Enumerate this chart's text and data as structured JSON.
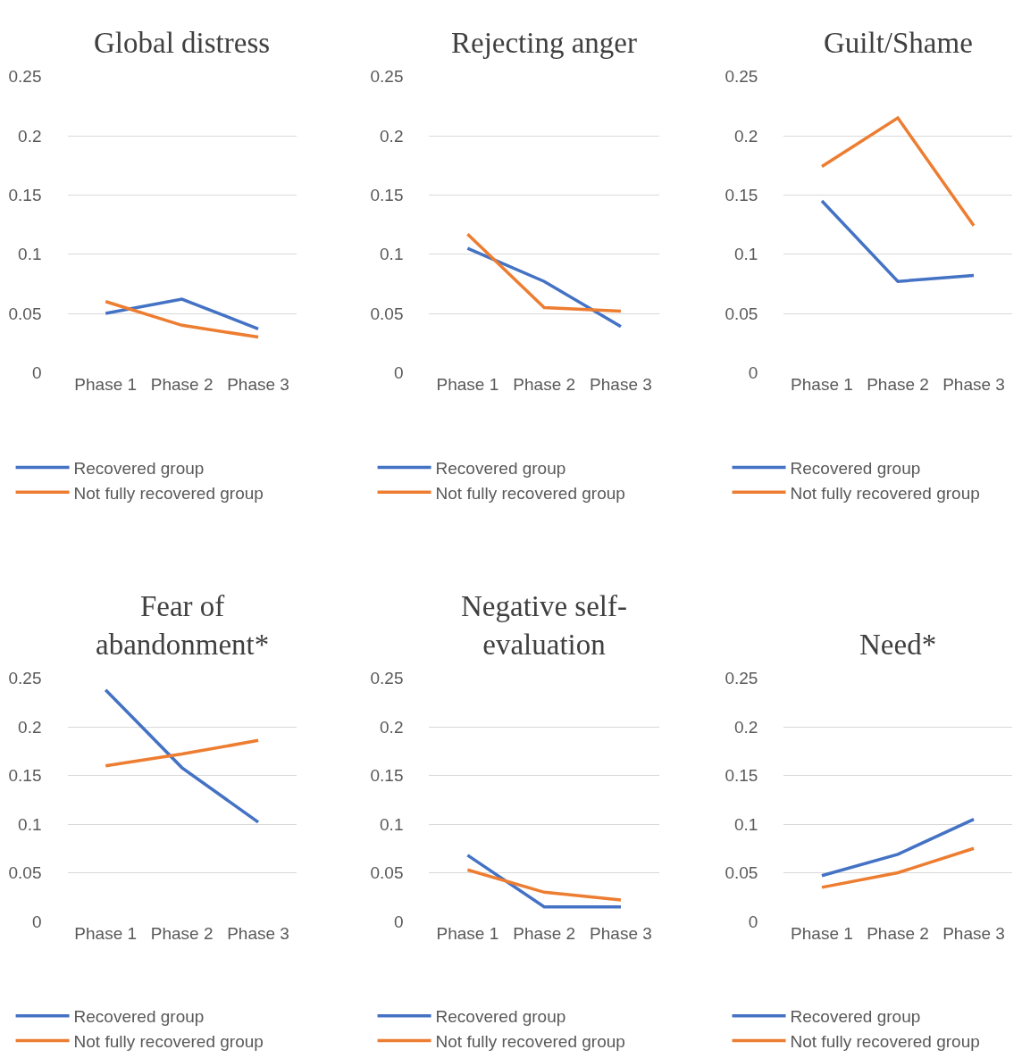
{
  "chart_data": [
    {
      "type": "line",
      "title": "Global distress",
      "categories": [
        "Phase 1",
        "Phase 2",
        "Phase 3"
      ],
      "ylim": [
        0,
        0.25
      ],
      "yticks": [
        0,
        0.05,
        0.1,
        0.15,
        0.2,
        0.25
      ],
      "grid": "y",
      "legend": "bottom",
      "series": [
        {
          "name": "Recovered group",
          "color": "#4472c4",
          "values": [
            0.05,
            0.062,
            0.037
          ]
        },
        {
          "name": "Not fully recovered group",
          "color": "#ed7d31",
          "values": [
            0.06,
            0.04,
            0.03
          ]
        }
      ]
    },
    {
      "type": "line",
      "title": "Rejecting anger",
      "categories": [
        "Phase 1",
        "Phase 2",
        "Phase 3"
      ],
      "ylim": [
        0,
        0.25
      ],
      "yticks": [
        0,
        0.05,
        0.1,
        0.15,
        0.2,
        0.25
      ],
      "grid": "y",
      "legend": "bottom",
      "series": [
        {
          "name": "Recovered group",
          "color": "#4472c4",
          "values": [
            0.105,
            0.077,
            0.039
          ]
        },
        {
          "name": "Not fully recovered group",
          "color": "#ed7d31",
          "values": [
            0.117,
            0.055,
            0.052
          ]
        }
      ]
    },
    {
      "type": "line",
      "title": "Guilt/Shame",
      "categories": [
        "Phase 1",
        "Phase 2",
        "Phase 3"
      ],
      "ylim": [
        0,
        0.25
      ],
      "yticks": [
        0,
        0.05,
        0.1,
        0.15,
        0.2,
        0.25
      ],
      "grid": "y",
      "legend": "bottom",
      "series": [
        {
          "name": "Recovered group",
          "color": "#4472c4",
          "values": [
            0.145,
            0.077,
            0.082
          ]
        },
        {
          "name": "Not fully recovered group",
          "color": "#ed7d31",
          "values": [
            0.174,
            0.215,
            0.124
          ]
        }
      ]
    },
    {
      "type": "line",
      "title": "Fear of abandonment*",
      "categories": [
        "Phase 1",
        "Phase 2",
        "Phase 3"
      ],
      "ylim": [
        0,
        0.25
      ],
      "yticks": [
        0,
        0.05,
        0.1,
        0.15,
        0.2,
        0.25
      ],
      "grid": "y",
      "legend": "bottom",
      "series": [
        {
          "name": "Recovered group",
          "color": "#4472c4",
          "values": [
            0.238,
            0.158,
            0.102
          ]
        },
        {
          "name": "Not fully recovered group",
          "color": "#ed7d31",
          "values": [
            0.16,
            0.172,
            0.186
          ]
        }
      ]
    },
    {
      "type": "line",
      "title": "Negative self-evaluation",
      "categories": [
        "Phase 1",
        "Phase 2",
        "Phase 3"
      ],
      "ylim": [
        0,
        0.25
      ],
      "yticks": [
        0,
        0.05,
        0.1,
        0.15,
        0.2,
        0.25
      ],
      "grid": "y",
      "legend": "bottom",
      "series": [
        {
          "name": "Recovered group",
          "color": "#4472c4",
          "values": [
            0.068,
            0.015,
            0.015
          ]
        },
        {
          "name": "Not fully recovered group",
          "color": "#ed7d31",
          "values": [
            0.053,
            0.03,
            0.022
          ]
        }
      ]
    },
    {
      "type": "line",
      "title": "Need*",
      "categories": [
        "Phase 1",
        "Phase 2",
        "Phase 3"
      ],
      "ylim": [
        0,
        0.25
      ],
      "yticks": [
        0,
        0.05,
        0.1,
        0.15,
        0.2,
        0.25
      ],
      "grid": "y",
      "legend": "bottom",
      "series": [
        {
          "name": "Recovered group",
          "color": "#4472c4",
          "values": [
            0.047,
            0.069,
            0.105
          ]
        },
        {
          "name": "Not fully recovered group",
          "color": "#ed7d31",
          "values": [
            0.035,
            0.05,
            0.075
          ]
        }
      ]
    }
  ]
}
